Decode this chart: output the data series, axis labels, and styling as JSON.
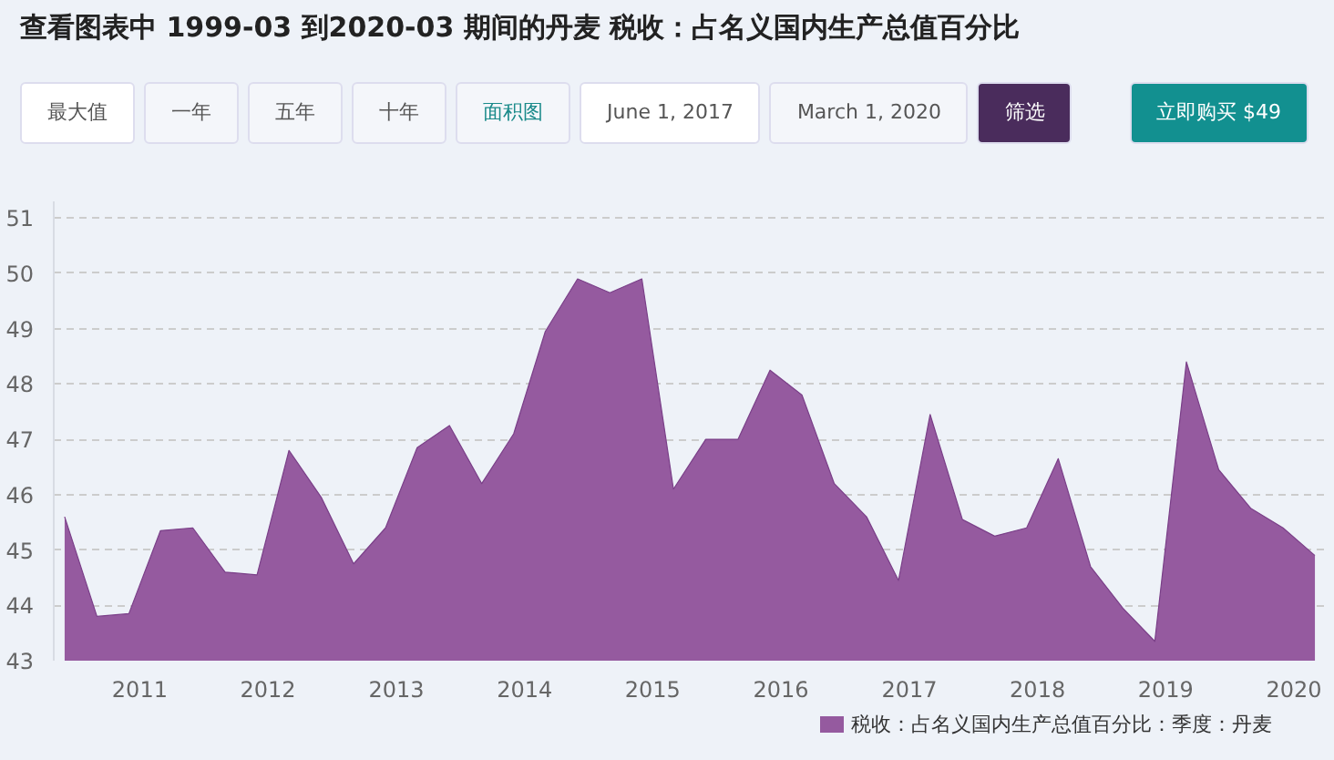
{
  "chart_data": {
    "type": "area",
    "title": "查看图表中 1999-03 到2020-03 期间的丹麦 税收：占名义国内生产总值百分比",
    "annotations": [
      "最大值",
      "一年",
      "五年",
      "十年",
      "面积图",
      "June 1, 2017",
      "March 1, 2020",
      "筛选",
      "立即购买 $49"
    ],
    "x": [
      "2010-06",
      "2010-09",
      "2010-12",
      "2011-03",
      "2011-06",
      "2011-09",
      "2011-12",
      "2012-03",
      "2012-06",
      "2012-09",
      "2012-12",
      "2013-03",
      "2013-06",
      "2013-09",
      "2013-12",
      "2014-03",
      "2014-06",
      "2014-09",
      "2014-12",
      "2015-03",
      "2015-06",
      "2015-09",
      "2015-12",
      "2016-03",
      "2016-06",
      "2016-09",
      "2016-12",
      "2017-03",
      "2017-06",
      "2017-09",
      "2017-12",
      "2018-03",
      "2018-06",
      "2018-09",
      "2018-12",
      "2019-03",
      "2019-06",
      "2019-09",
      "2019-12",
      "2020-03"
    ],
    "series": [
      {
        "name": "税收：占名义国内生产总值百分比：季度：丹麦",
        "color": "#955a9f",
        "values": [
          45.6,
          43.8,
          43.85,
          45.35,
          45.4,
          44.6,
          44.55,
          46.8,
          45.95,
          44.75,
          45.4,
          46.85,
          47.25,
          46.2,
          47.1,
          48.95,
          49.9,
          49.65,
          49.9,
          46.1,
          47.0,
          47.0,
          48.25,
          47.8,
          46.2,
          45.6,
          44.45,
          47.45,
          45.55,
          45.25,
          45.4,
          46.65,
          44.7,
          43.95,
          43.35,
          48.4,
          46.45,
          45.75,
          45.4,
          44.9
        ]
      }
    ],
    "xlim": [
      "2010-05",
      "2020-04"
    ],
    "xticks": [
      "2011",
      "2012",
      "2013",
      "2014",
      "2015",
      "2016",
      "2017",
      "2018",
      "2019",
      "2020"
    ],
    "ylim": [
      43,
      51.3
    ],
    "yticks": [
      43,
      44,
      45,
      46,
      47,
      48,
      49,
      50,
      51
    ],
    "grid": "y",
    "legend": "bottom"
  }
}
